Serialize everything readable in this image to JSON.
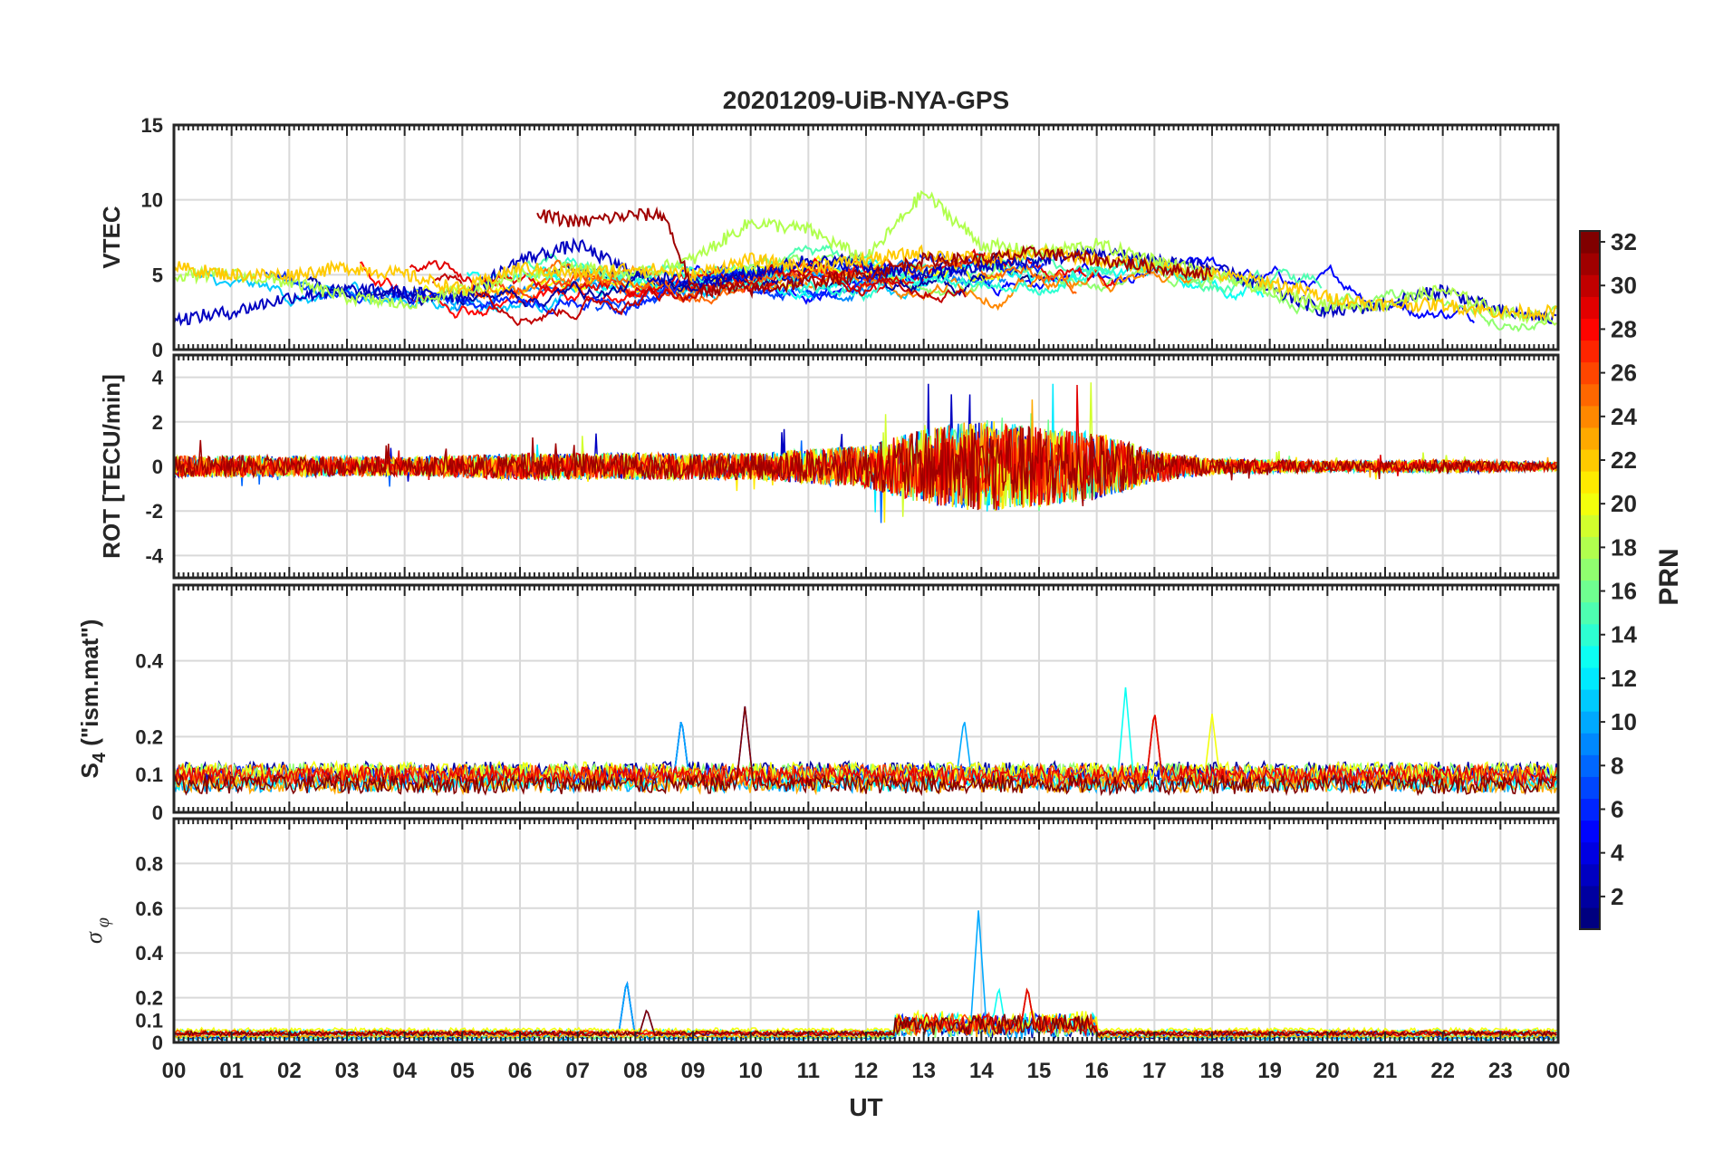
{
  "title": "20201209-UiB-NYA-GPS",
  "xlabel": "UT",
  "x_tick_labels": [
    "00",
    "01",
    "02",
    "03",
    "04",
    "05",
    "06",
    "07",
    "08",
    "09",
    "10",
    "11",
    "12",
    "13",
    "14",
    "15",
    "16",
    "17",
    "18",
    "19",
    "20",
    "21",
    "22",
    "23",
    "00"
  ],
  "colorbar": {
    "label": "PRN",
    "range": [
      1,
      32
    ],
    "tick_labels": [
      "2",
      "4",
      "6",
      "8",
      "10",
      "12",
      "14",
      "16",
      "18",
      "20",
      "22",
      "24",
      "26",
      "28",
      "30",
      "32"
    ]
  },
  "chart_data": [
    {
      "type": "line",
      "panel": "VTEC",
      "ylabel": "VTEC",
      "xlim": [
        0,
        24
      ],
      "ylim": [
        0,
        15
      ],
      "yticks": [
        "0",
        "5",
        "10",
        "15"
      ],
      "grid": true,
      "series_note": "one line per GPS satellite, coloured by PRN",
      "series": [
        {
          "prn": 3,
          "x": [
            0,
            1,
            2,
            3,
            4,
            5,
            6,
            7,
            8,
            9,
            10,
            11,
            12,
            13,
            14,
            15,
            16,
            17,
            18,
            19,
            20,
            21,
            22,
            23,
            24
          ],
          "values": [
            2,
            2.5,
            3.5,
            4,
            3.8,
            3.5,
            6,
            7,
            5,
            4.5,
            5,
            6,
            5.5,
            5,
            5.5,
            6,
            6.5,
            6,
            5.5,
            4,
            2.5,
            3,
            4,
            2.5,
            2
          ]
        },
        {
          "prn": 18,
          "x": [
            0,
            1,
            2,
            3,
            4,
            5,
            6,
            7,
            8,
            9,
            10,
            11,
            12,
            13,
            14,
            15,
            16,
            17,
            18,
            19,
            20,
            21,
            22,
            23,
            24
          ],
          "values": [
            5,
            5,
            4.5,
            3.5,
            3,
            4,
            5,
            5.5,
            5,
            6,
            8.5,
            8,
            6,
            10.5,
            7,
            6.5,
            7,
            6,
            5,
            4,
            3,
            3,
            4,
            2.5,
            2
          ]
        },
        {
          "prn": 22,
          "x": [
            0,
            1,
            2,
            3,
            4,
            5,
            6,
            7,
            8,
            9,
            10,
            11,
            12,
            13,
            14,
            15,
            16,
            17,
            18,
            19,
            20,
            21,
            22,
            23,
            24
          ],
          "values": [
            5.5,
            5,
            5,
            5.5,
            5,
            4,
            5.5,
            5,
            5.5,
            5,
            6,
            5.5,
            6,
            6.5,
            6,
            6.5,
            6,
            5.5,
            5,
            4.5,
            3.5,
            3,
            3,
            2.5,
            2.5
          ]
        },
        {
          "prn": 31,
          "x": [
            6.3,
            7,
            8,
            8.5,
            9,
            10,
            11,
            12,
            13,
            14,
            15,
            16,
            17,
            18
          ],
          "values": [
            9,
            8.5,
            9,
            9,
            4,
            4,
            4.5,
            5,
            6,
            6,
            6.5,
            6,
            5.5,
            5
          ]
        }
      ]
    },
    {
      "type": "line",
      "panel": "ROT",
      "ylabel": "ROT [TECU/min]",
      "xlim": [
        0,
        24
      ],
      "ylim": [
        -5,
        5
      ],
      "yticks": [
        "-4",
        "-2",
        "0",
        "2",
        "4"
      ],
      "grid": true,
      "series_note": "noisy rate-of-TEC per satellite, envelope amplitude vs UT",
      "envelope_x": [
        0,
        2,
        4,
        6,
        8,
        10,
        12,
        13,
        14,
        15,
        16,
        17,
        18,
        20,
        22,
        24
      ],
      "envelope_amplitude": [
        0.8,
        0.8,
        0.7,
        1,
        1,
        1,
        1.6,
        2.8,
        3.5,
        3,
        2.5,
        1.2,
        0.6,
        0.4,
        0.5,
        0.3
      ]
    },
    {
      "type": "line",
      "panel": "S4",
      "ylabel": "S4 (\"ism.mat\")",
      "xlim": [
        0,
        24
      ],
      "ylim": [
        0,
        0.6
      ],
      "yticks": [
        "0",
        "0.1",
        "0.2",
        "0.4"
      ],
      "grid": true,
      "series_note": "amplitude scintillation index per satellite",
      "baseline": 0.07,
      "peaks": [
        {
          "x": 8.8,
          "value": 0.25
        },
        {
          "x": 9.9,
          "value": 0.28
        },
        {
          "x": 13.7,
          "value": 0.25
        },
        {
          "x": 16.5,
          "value": 0.33
        },
        {
          "x": 17,
          "value": 0.27
        },
        {
          "x": 18,
          "value": 0.26
        }
      ]
    },
    {
      "type": "line",
      "panel": "sigma_phi",
      "ylabel": "σφ",
      "xlim": [
        0,
        24
      ],
      "ylim": [
        0,
        1
      ],
      "yticks": [
        "0",
        "0.1",
        "0.2",
        "0.4",
        "0.6",
        "0.8"
      ],
      "grid": true,
      "series_note": "phase scintillation index per satellite",
      "baseline": 0.02,
      "peaks": [
        {
          "x": 7.85,
          "value": 0.28
        },
        {
          "x": 8.2,
          "value": 0.15
        },
        {
          "x": 13.95,
          "value": 0.59
        },
        {
          "x": 14.3,
          "value": 0.25
        },
        {
          "x": 14.8,
          "value": 0.25
        }
      ]
    }
  ]
}
